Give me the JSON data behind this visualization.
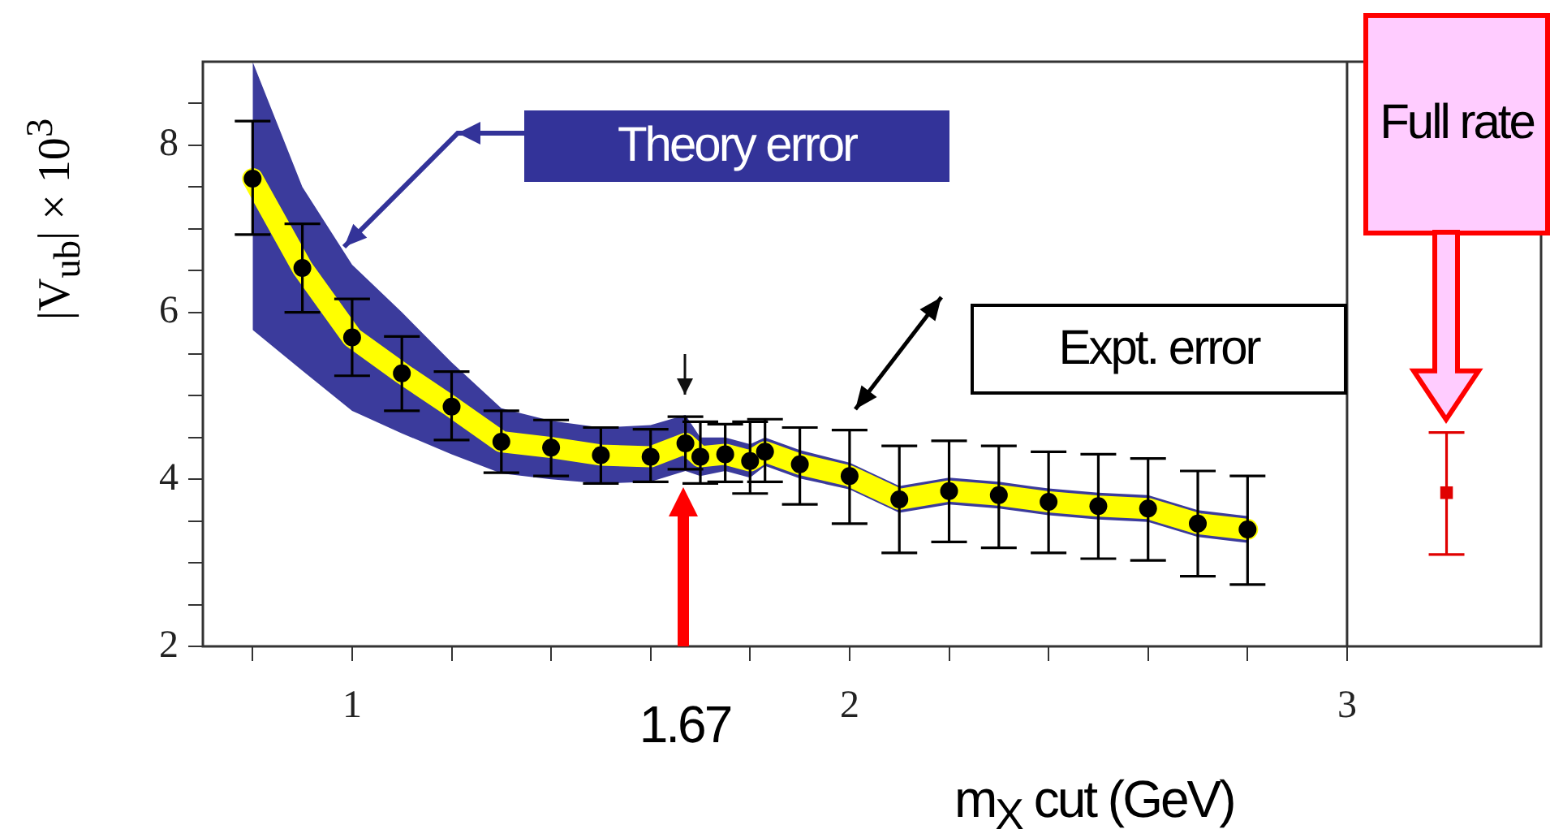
{
  "chart_data": {
    "type": "scatter",
    "xlabel": "m$_{X}$ cut (GeV)",
    "ylabel": "|V$_{ub}$| × 10$^{3}$",
    "x": [
      0.8,
      0.9,
      1.0,
      1.1,
      1.2,
      1.3,
      1.4,
      1.5,
      1.6,
      1.67,
      1.7,
      1.75,
      1.8,
      1.83,
      1.9,
      2.0,
      2.1,
      2.2,
      2.3,
      2.4,
      2.5,
      2.6,
      2.7,
      2.8
    ],
    "xlim": [
      0.7,
      3.39
    ],
    "xticks": [
      {
        "value": 0.8,
        "label": null
      },
      1,
      {
        "value": 1.2,
        "label": null
      },
      {
        "value": 1.4,
        "label": null
      },
      {
        "value": 1.6,
        "label": null
      },
      {
        "value": 1.8,
        "label": null
      },
      2,
      {
        "value": 2.2,
        "label": null
      },
      {
        "value": 2.4,
        "label": null
      },
      {
        "value": 2.6,
        "label": null
      },
      {
        "value": 2.8,
        "label": null
      },
      3
    ],
    "ylim": [
      2,
      9
    ],
    "yticks": [
      2,
      {
        "value": 2.5,
        "label": null
      },
      {
        "value": 3,
        "label": null
      },
      {
        "value": 3.5,
        "label": null
      },
      4,
      {
        "value": 4.5,
        "label": null
      },
      {
        "value": 5,
        "label": null
      },
      {
        "value": 5.5,
        "label": null
      },
      6,
      {
        "value": 6.5,
        "label": null
      },
      {
        "value": 7,
        "label": null
      },
      {
        "value": 7.5,
        "label": null
      },
      8,
      {
        "value": 8.5,
        "label": null
      }
    ],
    "series": [
      {
        "type": "line",
        "marker": "none",
        "color": "#ffff00",
        "values": [
          7.6,
          6.53,
          5.7,
          5.27,
          4.87,
          4.45,
          4.38,
          4.29,
          4.27,
          4.43,
          4.27,
          4.3,
          4.22,
          4.33,
          4.18,
          4.04,
          3.76,
          3.86,
          3.81,
          3.73,
          3.68,
          3.65,
          3.47,
          3.4
        ],
        "lower": [
          5.79,
          5.3,
          4.82,
          4.55,
          4.3,
          4.07,
          4.0,
          3.95,
          3.97,
          4.1,
          4.04,
          4.1,
          4.02,
          4.16,
          4.01,
          3.88,
          3.6,
          3.7,
          3.65,
          3.57,
          3.52,
          3.49,
          3.31,
          3.24
        ],
        "upper": [
          9.0,
          7.5,
          6.57,
          6.0,
          5.4,
          4.85,
          4.7,
          4.62,
          4.65,
          4.77,
          4.5,
          4.5,
          4.42,
          4.5,
          4.35,
          4.2,
          3.92,
          4.02,
          3.97,
          3.89,
          3.84,
          3.81,
          3.63,
          3.56
        ]
      },
      {
        "marker": "circle",
        "color": "#000000",
        "values": [
          7.6,
          6.53,
          5.7,
          5.27,
          4.87,
          4.45,
          4.38,
          4.29,
          4.27,
          4.43,
          4.27,
          4.3,
          4.22,
          4.33,
          4.18,
          4.04,
          3.76,
          3.86,
          3.81,
          3.73,
          3.68,
          3.65,
          3.47,
          3.4
        ],
        "errors": [
          [
            6.93,
            8.29
          ],
          [
            6.0,
            7.06
          ],
          [
            5.24,
            6.16
          ],
          [
            4.82,
            5.71
          ],
          [
            4.47,
            5.29
          ],
          [
            4.08,
            4.82
          ],
          [
            4.04,
            4.71
          ],
          [
            3.95,
            4.62
          ],
          [
            3.97,
            4.6
          ],
          [
            4.12,
            4.75
          ],
          [
            3.95,
            4.69
          ],
          [
            3.97,
            4.66
          ],
          [
            3.83,
            4.69
          ],
          [
            3.97,
            4.72
          ],
          [
            3.7,
            4.62
          ],
          [
            3.47,
            4.59
          ],
          [
            3.12,
            4.4
          ],
          [
            3.25,
            4.46
          ],
          [
            3.18,
            4.4
          ],
          [
            3.12,
            4.33
          ],
          [
            3.05,
            4.3
          ],
          [
            3.03,
            4.25
          ],
          [
            2.84,
            4.1
          ],
          [
            2.74,
            4.04
          ]
        ]
      },
      {
        "name": "Full rate",
        "marker": "square",
        "color": "#e00000",
        "x": [
          3.2
        ],
        "values": [
          3.84
        ],
        "errors": [
          [
            3.1,
            4.56
          ]
        ]
      }
    ],
    "ref_lines": [
      {
        "axis": "x",
        "value": 3
      }
    ],
    "annotations": [
      "Theory error",
      "Expt. error",
      "1.67"
    ]
  }
}
